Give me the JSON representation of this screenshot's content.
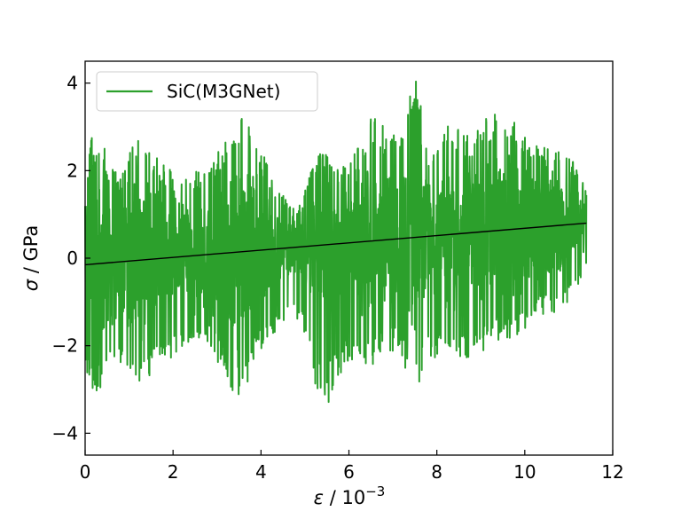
{
  "chart_data": {
    "type": "line",
    "title": "",
    "xlabel": {
      "symbol": "ε",
      "unit_text": " / 10",
      "exponent": "−3"
    },
    "ylabel": {
      "symbol": "σ",
      "unit_text": " / GPa"
    },
    "xlim": [
      0,
      12
    ],
    "ylim": [
      -4.5,
      4.5
    ],
    "x_ticks": [
      0,
      2,
      4,
      6,
      8,
      10,
      12
    ],
    "y_ticks": [
      -4,
      -2,
      0,
      2,
      4
    ],
    "x_tick_labels": [
      "0",
      "2",
      "4",
      "6",
      "8",
      "10",
      "12"
    ],
    "y_tick_labels": [
      "−4",
      "−2",
      "0",
      "2",
      "4"
    ],
    "grid": false,
    "legend": {
      "placement": "upper-left",
      "entries": [
        "SiC(M3GNet)"
      ]
    },
    "series": [
      {
        "name": "SiC(M3GNet)",
        "color": "#2ca02c",
        "style": "noisy stress-strain trace",
        "x_range": [
          0,
          11.4
        ],
        "envelope_max": [
          [
            0.0,
            2.9
          ],
          [
            0.4,
            2.6
          ],
          [
            0.8,
            1.8
          ],
          [
            1.2,
            2.9
          ],
          [
            1.7,
            2.2
          ],
          [
            2.2,
            1.9
          ],
          [
            2.8,
            2.1
          ],
          [
            3.5,
            3.3
          ],
          [
            3.9,
            2.8
          ],
          [
            4.4,
            1.5
          ],
          [
            4.9,
            1.2
          ],
          [
            5.3,
            2.6
          ],
          [
            5.5,
            2.5
          ],
          [
            6.0,
            2.1
          ],
          [
            6.5,
            3.3
          ],
          [
            6.8,
            3.0
          ],
          [
            7.1,
            2.8
          ],
          [
            7.55,
            4.2
          ],
          [
            7.8,
            2.3
          ],
          [
            8.3,
            3.1
          ],
          [
            8.8,
            2.8
          ],
          [
            9.2,
            3.3
          ],
          [
            9.7,
            3.3
          ],
          [
            10.2,
            2.6
          ],
          [
            10.6,
            2.5
          ],
          [
            11.0,
            2.4
          ],
          [
            11.4,
            1.6
          ]
        ],
        "envelope_min": [
          [
            0.0,
            -2.9
          ],
          [
            0.4,
            -3.1
          ],
          [
            0.8,
            -2.4
          ],
          [
            1.2,
            -3.1
          ],
          [
            1.7,
            -2.4
          ],
          [
            2.2,
            -2.2
          ],
          [
            2.8,
            -1.9
          ],
          [
            3.4,
            -3.2
          ],
          [
            3.5,
            -3.3
          ],
          [
            4.0,
            -2.1
          ],
          [
            4.5,
            -1.5
          ],
          [
            4.9,
            -1.4
          ],
          [
            5.4,
            -3.6
          ],
          [
            6.0,
            -2.3
          ],
          [
            6.6,
            -2.5
          ],
          [
            7.1,
            -2.1
          ],
          [
            7.5,
            -3.1
          ],
          [
            7.8,
            -2.3
          ],
          [
            8.3,
            -2.3
          ],
          [
            8.8,
            -2.4
          ],
          [
            9.3,
            -1.9
          ],
          [
            9.7,
            -2.0
          ],
          [
            10.2,
            -1.4
          ],
          [
            10.8,
            -1.3
          ],
          [
            11.4,
            -0.3
          ]
        ]
      },
      {
        "name": "",
        "color": "#000000",
        "style": "linear fit",
        "x": [
          0,
          11.4
        ],
        "y": [
          -0.15,
          0.8
        ]
      }
    ]
  }
}
